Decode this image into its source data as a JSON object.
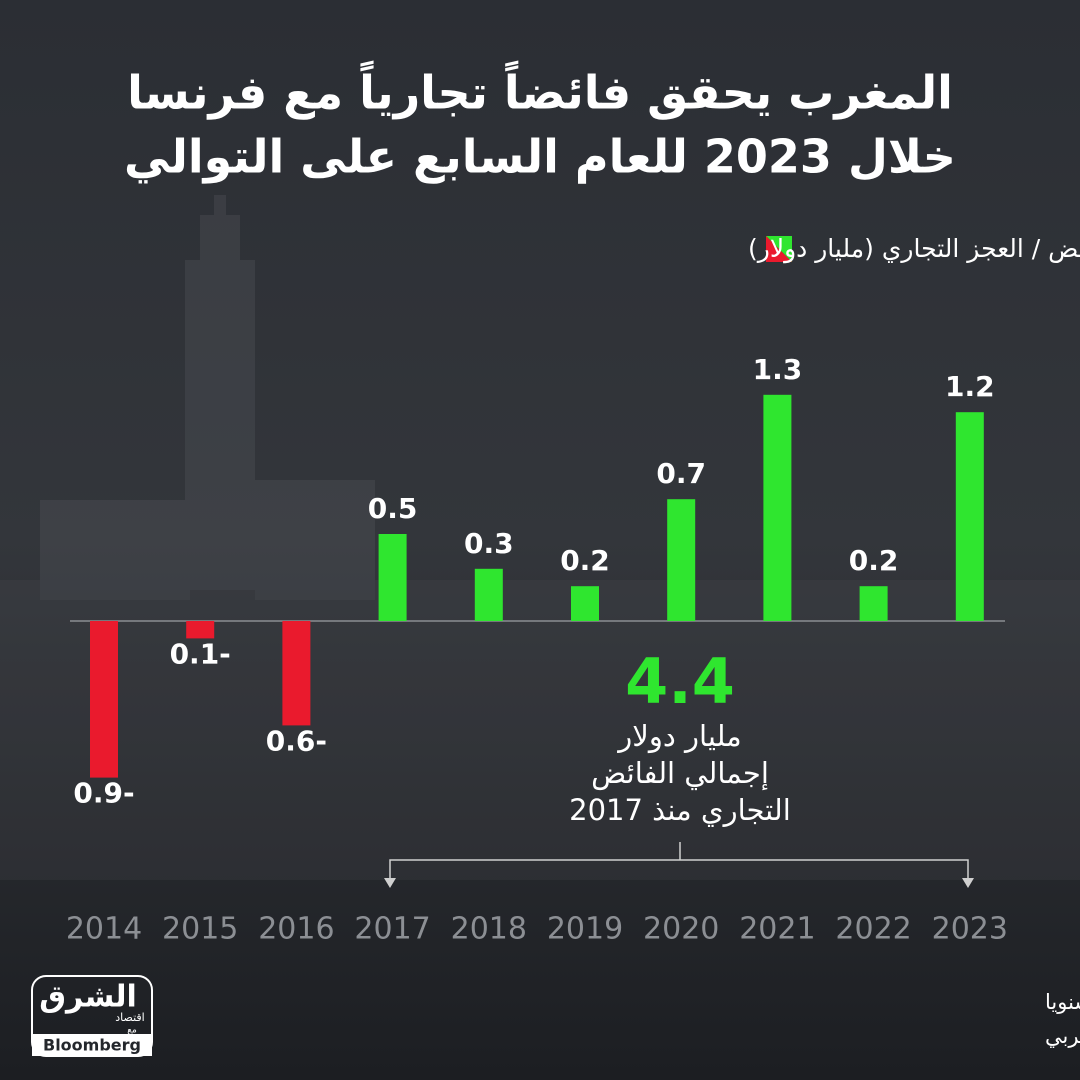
{
  "chart_data": {
    "type": "bar",
    "title": [
      "المغرب يحقق فائضاً تجارياً مع فرنسا",
      "خلال 2023 للعام السابع على التوالي"
    ],
    "legend": "الفائض / العجز التجاري (مليار دولار)",
    "categories": [
      "2014",
      "2015",
      "2016",
      "2017",
      "2018",
      "2019",
      "2020",
      "2021",
      "2022",
      "2023"
    ],
    "values": [
      -0.9,
      -0.1,
      -0.6,
      0.5,
      0.3,
      0.2,
      0.7,
      1.3,
      0.2,
      1.2
    ],
    "value_labels": [
      "0.9-",
      "0.1-",
      "0.6-",
      "0.5",
      "0.3",
      "0.2",
      "0.7",
      "1.3",
      "0.2",
      "1.2"
    ],
    "positive_color": "#2fe62f",
    "negative_color": "#ea1a2d",
    "annotation": {
      "value": 4.4,
      "lines": [
        "مليار دولار",
        "إجمالي الفائض",
        "التجاري منذ 2017"
      ]
    },
    "notes": [
      "ملاحظة: البيانات وفقا لمتوسط سعر صرف الدرهم المغربي سنويا",
      "المصدر: بيانات مكتب الصرف المغربي"
    ],
    "logo": {
      "name": "الشرق",
      "section": "اقتصاد",
      "with": "مع",
      "partner": "Bloomberg"
    }
  }
}
